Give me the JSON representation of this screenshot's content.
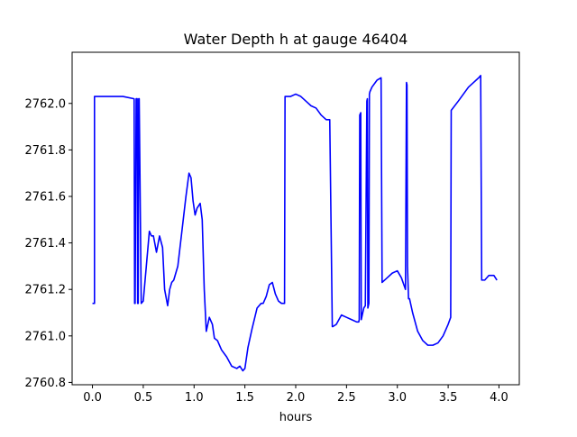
{
  "chart_data": {
    "type": "line",
    "title": "Water Depth h at gauge 46404",
    "xlabel": "hours",
    "ylabel": "",
    "xlim": [
      -0.2,
      4.2
    ],
    "ylim": [
      2760.79,
      2762.22
    ],
    "x_ticks": [
      0.0,
      0.5,
      1.0,
      1.5,
      2.0,
      2.5,
      3.0,
      3.5,
      4.0
    ],
    "x_tick_labels": [
      "0.0",
      "0.5",
      "1.0",
      "1.5",
      "2.0",
      "2.5",
      "3.0",
      "3.5",
      "4.0"
    ],
    "y_ticks": [
      2760.8,
      2761.0,
      2761.2,
      2761.4,
      2761.6,
      2761.8,
      2762.0
    ],
    "y_tick_labels": [
      "2760.8",
      "2761.0",
      "2761.2",
      "2761.4",
      "2761.6",
      "2761.8",
      "2762.0"
    ],
    "grid": false,
    "legend": "none",
    "series": [
      {
        "color": "#0000ff",
        "x": [
          0.0,
          0.02,
          0.02,
          0.15,
          0.3,
          0.41,
          0.415,
          0.42,
          0.43,
          0.44,
          0.445,
          0.45,
          0.455,
          0.46,
          0.48,
          0.5,
          0.53,
          0.56,
          0.58,
          0.6,
          0.63,
          0.66,
          0.69,
          0.71,
          0.74,
          0.76,
          0.78,
          0.8,
          0.84,
          0.88,
          0.92,
          0.95,
          0.97,
          0.99,
          1.01,
          1.03,
          1.06,
          1.08,
          1.1,
          1.12,
          1.15,
          1.18,
          1.2,
          1.23,
          1.27,
          1.32,
          1.37,
          1.42,
          1.45,
          1.48,
          1.5,
          1.53,
          1.57,
          1.62,
          1.66,
          1.68,
          1.71,
          1.74,
          1.77,
          1.8,
          1.83,
          1.86,
          1.89,
          1.895,
          1.9,
          1.95,
          2.0,
          2.05,
          2.1,
          2.15,
          2.2,
          2.25,
          2.3,
          2.335,
          2.36,
          2.365,
          2.4,
          2.45,
          2.5,
          2.55,
          2.6,
          2.62,
          2.625,
          2.63,
          2.64,
          2.645,
          2.65,
          2.66,
          2.67,
          2.685,
          2.7,
          2.705,
          2.71,
          2.72,
          2.725,
          2.73,
          2.75,
          2.8,
          2.84,
          2.85,
          2.9,
          2.95,
          3.0,
          3.04,
          3.08,
          3.09,
          3.095,
          3.1,
          3.11,
          3.12,
          3.15,
          3.2,
          3.25,
          3.3,
          3.35,
          3.4,
          3.45,
          3.5,
          3.525,
          3.53,
          3.6,
          3.65,
          3.7,
          3.75,
          3.8,
          3.82,
          3.83,
          3.86,
          3.9,
          3.95,
          3.98
        ],
        "y": [
          2761.14,
          2761.14,
          2762.03,
          2762.03,
          2762.03,
          2762.02,
          2761.14,
          2761.14,
          2762.02,
          2762.02,
          2761.14,
          2761.14,
          2762.02,
          2762.02,
          2761.14,
          2761.15,
          2761.3,
          2761.45,
          2761.43,
          2761.43,
          2761.36,
          2761.43,
          2761.38,
          2761.2,
          2761.13,
          2761.2,
          2761.23,
          2761.24,
          2761.3,
          2761.45,
          2761.6,
          2761.7,
          2761.68,
          2761.58,
          2761.52,
          2761.55,
          2761.57,
          2761.5,
          2761.2,
          2761.02,
          2761.08,
          2761.05,
          2760.99,
          2760.98,
          2760.94,
          2760.91,
          2760.87,
          2760.86,
          2760.87,
          2760.85,
          2760.86,
          2760.95,
          2761.03,
          2761.12,
          2761.14,
          2761.14,
          2761.17,
          2761.22,
          2761.23,
          2761.18,
          2761.15,
          2761.14,
          2761.14,
          2762.03,
          2762.03,
          2762.03,
          2762.04,
          2762.03,
          2762.01,
          2761.99,
          2761.98,
          2761.95,
          2761.93,
          2761.93,
          2761.04,
          2761.04,
          2761.05,
          2761.09,
          2761.08,
          2761.07,
          2761.06,
          2761.06,
          2761.07,
          2761.95,
          2761.96,
          2761.07,
          2761.08,
          2761.1,
          2761.12,
          2761.13,
          2762.01,
          2762.02,
          2761.12,
          2761.14,
          2762.04,
          2762.05,
          2762.07,
          2762.1,
          2762.11,
          2761.23,
          2761.25,
          2761.27,
          2761.28,
          2761.25,
          2761.2,
          2762.09,
          2762.08,
          2761.3,
          2761.16,
          2761.16,
          2761.1,
          2761.02,
          2760.98,
          2760.96,
          2760.96,
          2760.97,
          2761.0,
          2761.05,
          2761.08,
          2761.97,
          2762.01,
          2762.04,
          2762.07,
          2762.09,
          2762.11,
          2762.12,
          2761.24,
          2761.24,
          2761.26,
          2761.26,
          2761.24
        ]
      }
    ]
  }
}
